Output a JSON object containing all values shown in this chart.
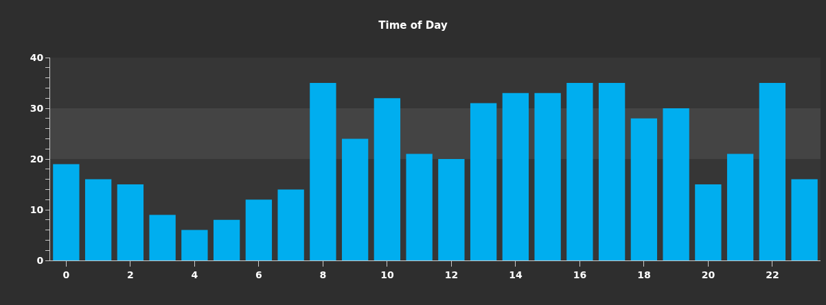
{
  "chart_data": {
    "type": "bar",
    "title": "Time of Day",
    "categories": [
      "0",
      null,
      "2",
      null,
      "4",
      null,
      "6",
      null,
      "8",
      null,
      "10",
      null,
      "12",
      null,
      "14",
      null,
      "16",
      null,
      "18",
      null,
      "20",
      null,
      "22",
      null
    ],
    "values": [
      19,
      16,
      15,
      9,
      6,
      8,
      12,
      14,
      35,
      24,
      32,
      21,
      20,
      31,
      33,
      33,
      35,
      35,
      28,
      30,
      15,
      21,
      35,
      16
    ],
    "color": "#00aeef",
    "ylim": [
      0,
      40
    ],
    "yticks": [
      0,
      {
        "value": 2,
        "label": null
      },
      {
        "value": 4,
        "label": null
      },
      {
        "value": 6,
        "label": null
      },
      {
        "value": 8,
        "label": null
      },
      10,
      {
        "value": 12,
        "label": null
      },
      {
        "value": 14,
        "label": null
      },
      {
        "value": 16,
        "label": null
      },
      {
        "value": 18,
        "label": null
      },
      20,
      {
        "value": 22,
        "label": null
      },
      {
        "value": 24,
        "label": null
      },
      {
        "value": 26,
        "label": null
      },
      {
        "value": 28,
        "label": null
      },
      30,
      {
        "value": 32,
        "label": null
      },
      {
        "value": 34,
        "label": null
      },
      {
        "value": 36,
        "label": null
      },
      {
        "value": 38,
        "label": null
      },
      40
    ],
    "bands": [
      {
        "axis": "y",
        "from": 20,
        "to": 30,
        "color": "#444444"
      }
    ]
  }
}
